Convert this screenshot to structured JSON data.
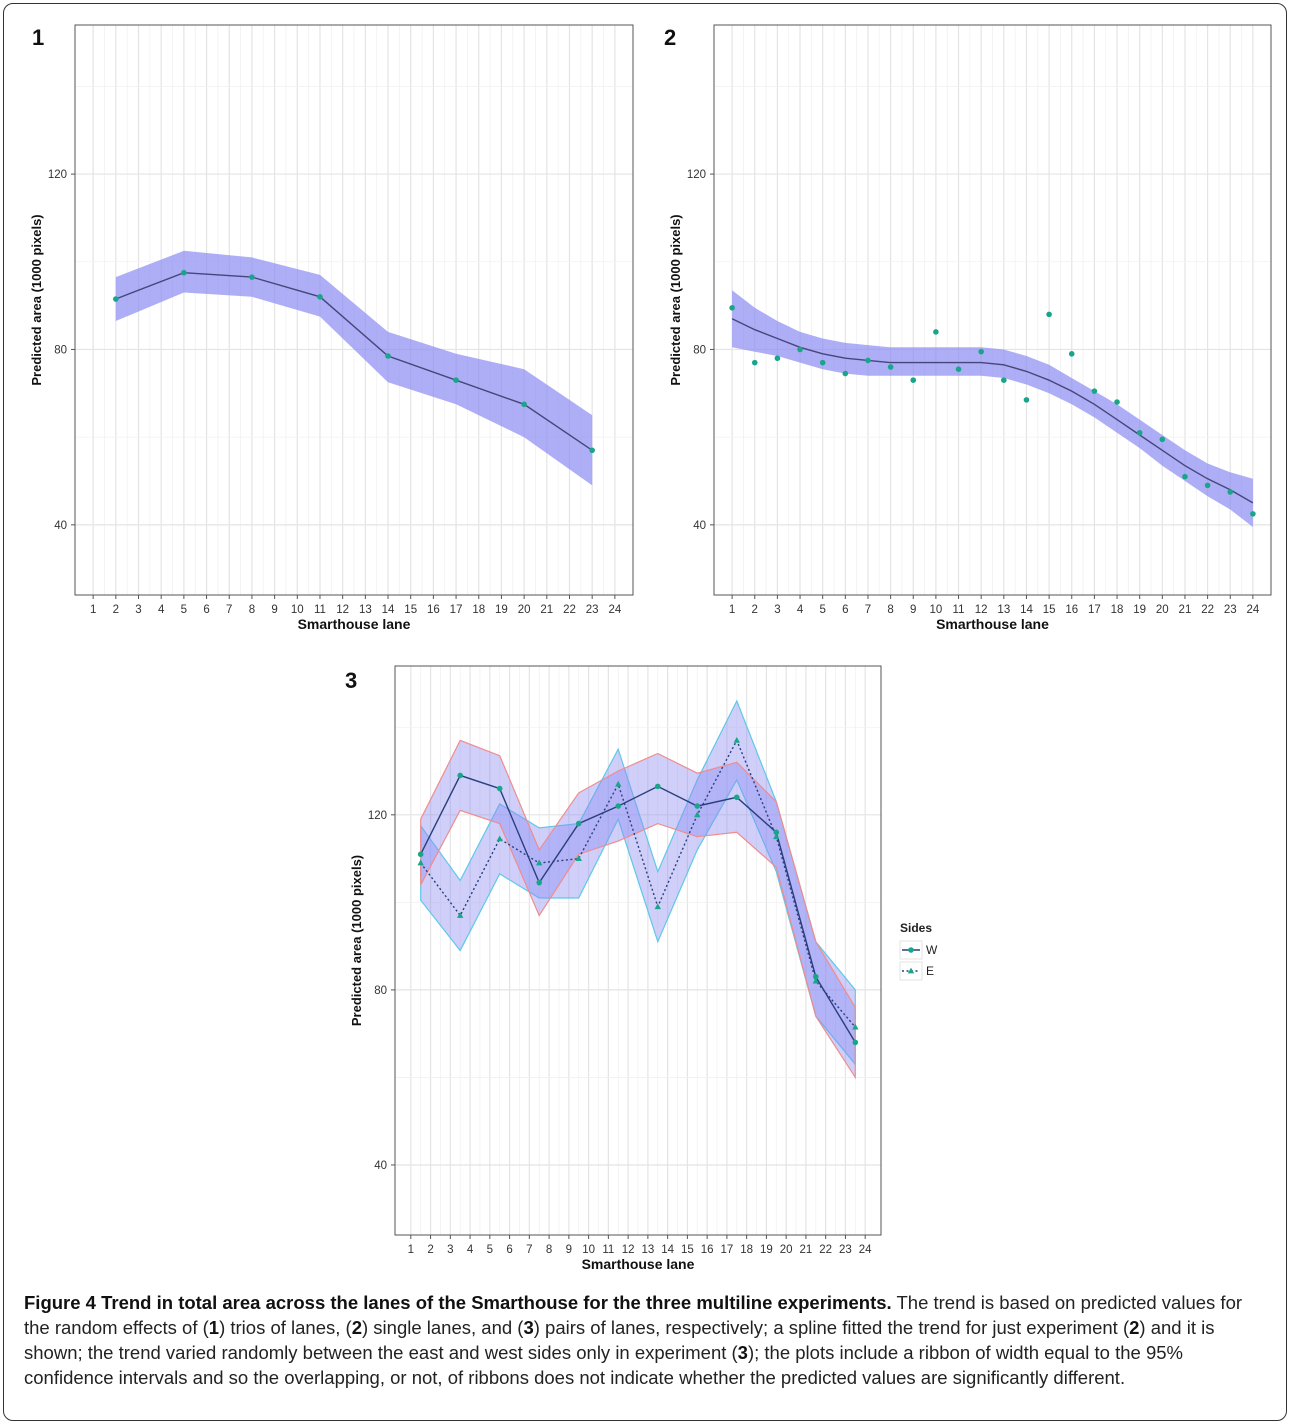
{
  "chart_data": [
    {
      "type": "line",
      "panel_label": "1",
      "xlabel": "Smarthouse lane",
      "ylabel": "Predicted area (1000 pixels)",
      "x_ticks": [
        "1",
        "2",
        "3",
        "4",
        "5",
        "6",
        "7",
        "8",
        "9",
        "10",
        "11",
        "12",
        "13",
        "14",
        "15",
        "16",
        "17",
        "18",
        "19",
        "20",
        "21",
        "22",
        "23",
        "24"
      ],
      "y_ticks": [
        "40",
        "80",
        "120"
      ],
      "xlim": [
        0.2,
        24.8
      ],
      "ylim": [
        24,
        154
      ],
      "grid": true,
      "series": [
        {
          "x": [
            2,
            5,
            8,
            11,
            14,
            17,
            20,
            23
          ],
          "values": [
            91.5,
            97.5,
            96.5,
            92,
            78.5,
            73,
            67.5,
            57
          ],
          "lower": [
            86.5,
            93,
            92,
            87.5,
            72.5,
            67.5,
            60,
            49
          ],
          "upper": [
            96.5,
            102.5,
            101,
            97,
            84,
            79,
            75.5,
            65
          ]
        }
      ]
    },
    {
      "type": "scatter",
      "panel_label": "2",
      "xlabel": "Smarthouse lane",
      "ylabel": "Predicted area (1000 pixels)",
      "x_ticks": [
        "1",
        "2",
        "3",
        "4",
        "5",
        "6",
        "7",
        "8",
        "9",
        "10",
        "11",
        "12",
        "13",
        "14",
        "15",
        "16",
        "17",
        "18",
        "19",
        "20",
        "21",
        "22",
        "23",
        "24"
      ],
      "y_ticks": [
        "40",
        "80",
        "120"
      ],
      "xlim": [
        0.2,
        24.8
      ],
      "ylim": [
        24,
        154
      ],
      "grid": true,
      "points": {
        "x": [
          1,
          2,
          3,
          4,
          5,
          6,
          7,
          8,
          9,
          10,
          11,
          12,
          13,
          14,
          15,
          16,
          17,
          18,
          19,
          20,
          21,
          22,
          23,
          24
        ],
        "values": [
          89.5,
          77,
          78,
          80,
          77,
          74.5,
          77.5,
          76,
          73,
          84,
          75.5,
          79.5,
          73,
          68.5,
          88,
          79,
          70.5,
          68,
          61,
          59.5,
          51,
          49,
          47.5,
          42.5
        ]
      },
      "spline": {
        "x": [
          1,
          2,
          3,
          4,
          5,
          6,
          7,
          8,
          9,
          10,
          11,
          12,
          13,
          14,
          15,
          16,
          17,
          18,
          19,
          20,
          21,
          22,
          23,
          24
        ],
        "values": [
          87,
          84.5,
          82.5,
          80.5,
          79,
          78,
          77.5,
          77,
          77,
          77,
          77,
          77,
          76.5,
          75,
          73,
          70.5,
          67.5,
          64,
          60.5,
          57,
          53.5,
          50.5,
          48,
          45
        ],
        "lower": [
          80.5,
          79.5,
          78.5,
          77,
          75.5,
          74.5,
          74,
          74,
          74,
          74,
          74,
          74,
          73.5,
          72,
          70,
          67.5,
          64.5,
          61,
          57.5,
          53.5,
          50,
          46.5,
          43.5,
          39.5
        ],
        "upper": [
          93.5,
          89.5,
          86.5,
          84,
          82.5,
          81.5,
          81,
          80.5,
          80.5,
          80.5,
          80.5,
          80.5,
          80,
          78.5,
          76.5,
          73.5,
          70.5,
          67.5,
          64,
          60.5,
          57,
          54,
          52,
          50.5
        ]
      }
    },
    {
      "type": "line",
      "panel_label": "3",
      "xlabel": "Smarthouse lane",
      "ylabel": "Predicted area (1000 pixels)",
      "x_ticks": [
        "1",
        "2",
        "3",
        "4",
        "5",
        "6",
        "7",
        "8",
        "9",
        "10",
        "11",
        "12",
        "13",
        "14",
        "15",
        "16",
        "17",
        "18",
        "19",
        "20",
        "21",
        "22",
        "23",
        "24"
      ],
      "y_ticks": [
        "40",
        "80",
        "120"
      ],
      "xlim": [
        0.2,
        24.8
      ],
      "ylim": [
        24,
        154
      ],
      "grid": true,
      "legend": {
        "title": "Sides",
        "position": "right"
      },
      "series": [
        {
          "name": "W",
          "line": "solid",
          "marker": "circle",
          "x": [
            1.5,
            3.5,
            5.5,
            7.5,
            9.5,
            11.5,
            13.5,
            15.5,
            17.5,
            19.5,
            21.5,
            23.5
          ],
          "values": [
            111,
            129,
            126,
            104.5,
            118,
            122,
            126.5,
            122,
            124,
            116,
            83,
            68
          ],
          "lower": [
            104,
            121,
            118,
            97,
            111,
            114,
            118,
            115,
            116,
            108,
            74,
            60
          ],
          "upper": [
            119,
            137,
            133.5,
            112,
            125,
            130,
            134,
            129.5,
            132,
            123,
            91,
            76
          ]
        },
        {
          "name": "E",
          "line": "dotted",
          "marker": "triangle",
          "x": [
            1.5,
            3.5,
            5.5,
            7.5,
            9.5,
            11.5,
            13.5,
            15.5,
            17.5,
            19.5,
            21.5,
            23.5
          ],
          "values": [
            109,
            97,
            114.5,
            109,
            110,
            127,
            99,
            120,
            137,
            115,
            82,
            71.5
          ],
          "lower": [
            100.5,
            89,
            106.5,
            101,
            101,
            119,
            91,
            112,
            128,
            107,
            74,
            63
          ],
          "upper": [
            117.5,
            105,
            122.5,
            117,
            118,
            135,
            107,
            128,
            146,
            123,
            91,
            80
          ]
        }
      ]
    }
  ],
  "caption": {
    "prefix": "Figure 4 Trend in total area across the lanes of the Smarthouse for the three multiline experiments.",
    "text_1": " The trend is based on predicted values for the random effects of (",
    "b1": "1",
    "text_2": ") trios of lanes, (",
    "b2": "2",
    "text_3": ") single lanes, and (",
    "b3": "3",
    "text_4": ") pairs of lanes, respectively; a spline fitted the trend for just experiment (",
    "b4": "2",
    "text_5": ") and it is shown; the trend varied randomly between the east and west sides only in experiment (",
    "b5": "3",
    "text_6": "); the plots include a ribbon of width equal to the 95% confidence intervals and so the overlapping, or not, of ribbons does not indicate whether the predicted values are significantly different."
  },
  "colors": {
    "panel_bg": "#ffffff",
    "grid": "#e4e4e4",
    "ribbon": "#8c8cf4",
    "ribbon_e_border": "#5ec8e8",
    "ribbon_w_border": "#f08c8c",
    "line": "#46467a",
    "point": "#1aa58a",
    "w_line": "#2a3f7a",
    "e_line": "#2a3f7a"
  }
}
